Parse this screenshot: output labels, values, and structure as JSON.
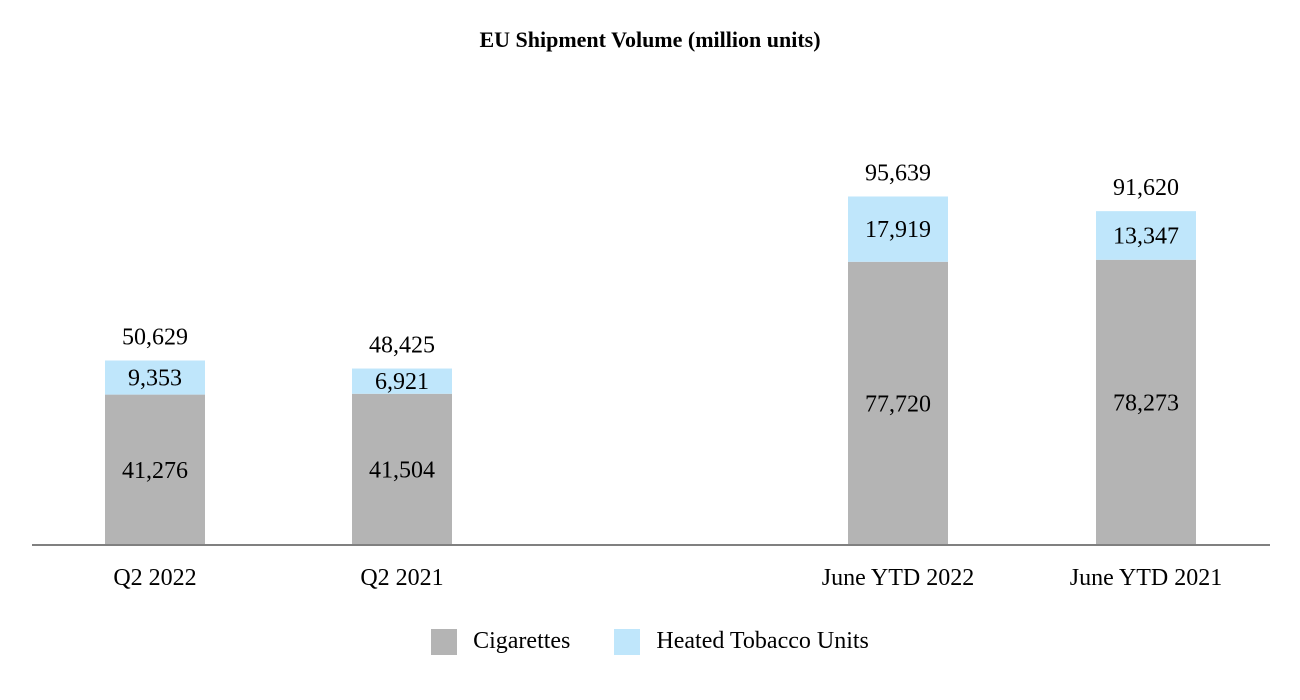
{
  "chart_data": {
    "type": "bar",
    "stacked": true,
    "title": "EU Shipment Volume (million units)",
    "categories": [
      "Q2 2022",
      "Q2 2021",
      "June YTD 2022",
      "June YTD 2021"
    ],
    "series": [
      {
        "name": "Cigarettes",
        "values": [
          41276,
          41504,
          77720,
          78273
        ],
        "labels": [
          "41,276",
          "41,504",
          "77,720",
          "78,273"
        ],
        "color": "#b4b4b4"
      },
      {
        "name": "Heated Tobacco Units",
        "values": [
          9353,
          6921,
          17919,
          13347
        ],
        "labels": [
          "9,353",
          "6,921",
          "17,919",
          "13,347"
        ],
        "color": "#bfe6fb"
      }
    ],
    "totals": [
      50629,
      48425,
      95639,
      91620
    ],
    "total_labels": [
      "50,629",
      "48,425",
      "95,639",
      "91,620"
    ],
    "ylim": [
      0,
      105000
    ],
    "grid": false,
    "legend_position": "bottom-center",
    "axis_color": "#808080"
  }
}
